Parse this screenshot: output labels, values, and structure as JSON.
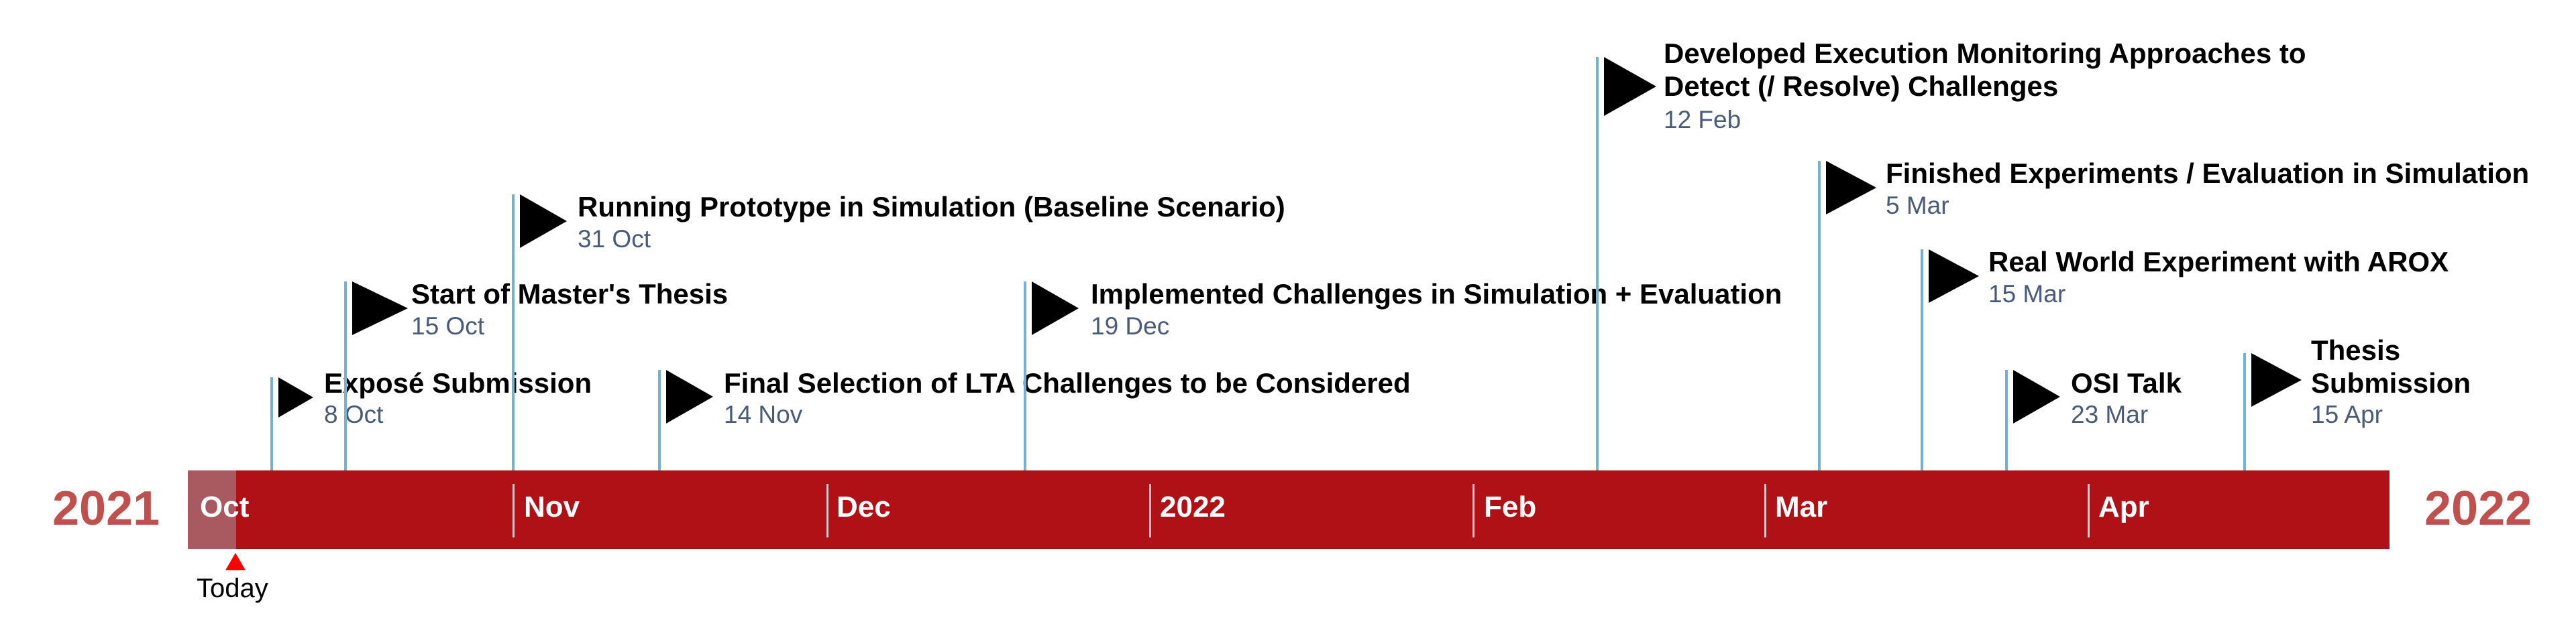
{
  "timeline": {
    "start_year": "2021",
    "end_year": "2022",
    "today_label": "Today",
    "months": [
      "Oct",
      "Nov",
      "Dec",
      "2022",
      "Feb",
      "Mar",
      "Apr"
    ],
    "milestones": [
      {
        "title": "Exposé Submission",
        "date": "8 Oct"
      },
      {
        "title": "Start of Master's Thesis",
        "date": "15 Oct"
      },
      {
        "title": "Running Prototype in Simulation (Baseline Scenario)",
        "date": "31 Oct"
      },
      {
        "title": "Final Selection of LTA Challenges to be Considered",
        "date": "14 Nov"
      },
      {
        "title": "Implemented Challenges in Simulation + Evaluation",
        "date": "19 Dec"
      },
      {
        "title": "Developed Execution Monitoring Approaches to",
        "title_line2": "Detect (/ Resolve) Challenges",
        "date": "12 Feb"
      },
      {
        "title": "Finished Experiments / Evaluation in Simulation",
        "date": "5 Mar"
      },
      {
        "title": "Real World Experiment with AROX",
        "date": "15 Mar"
      },
      {
        "title": "OSI Talk",
        "date": "23 Mar"
      },
      {
        "title": "Thesis",
        "title_line2": "Submission",
        "date": "15 Apr"
      }
    ]
  },
  "colors": {
    "bar": "#b01116",
    "elapsed": "#a85a60",
    "year_text": "#c0504d",
    "stem": "#6fb3d8",
    "flag": "#000000",
    "date_text": "#4a5a7a",
    "today_marker": "#ff0000"
  }
}
